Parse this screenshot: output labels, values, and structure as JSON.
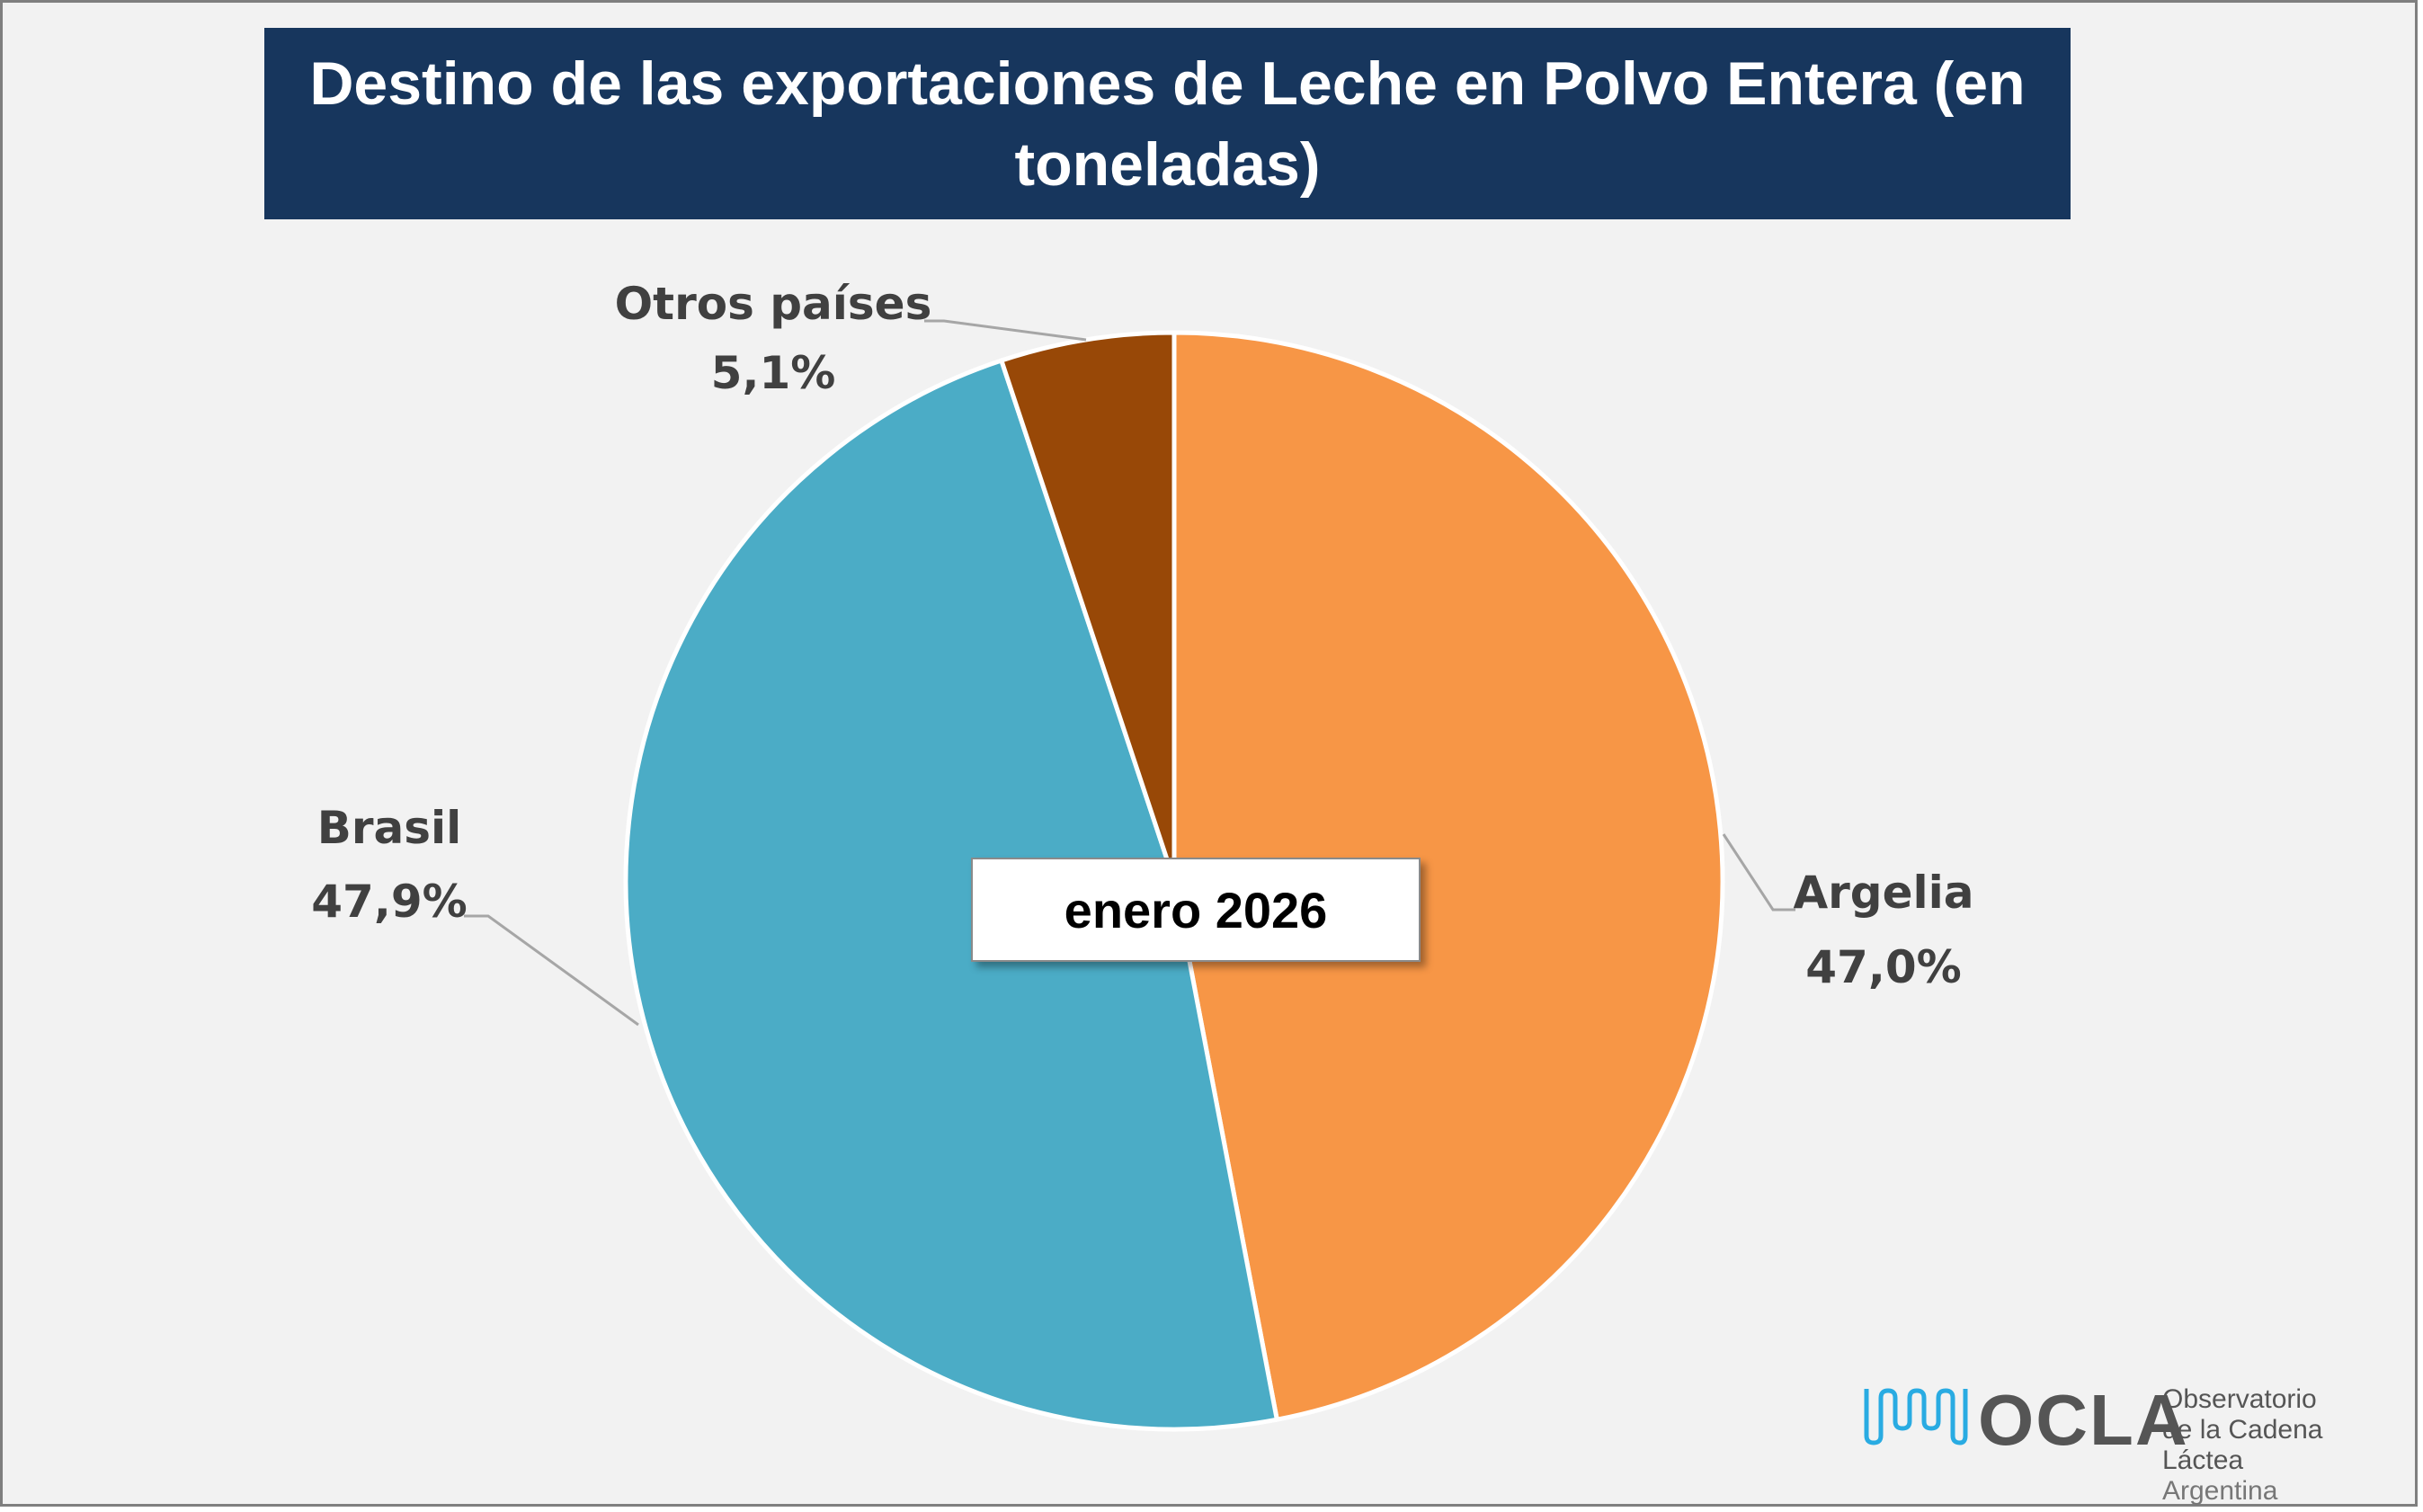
{
  "chart_data": {
    "type": "pie",
    "title": "Destino de las exportaciones de Leche en Polvo Entera (en toneladas)",
    "annotation": "enero 2026",
    "slices": [
      {
        "label": "Argelia",
        "value": 47.0,
        "display": "47,0%",
        "color": "#f79646"
      },
      {
        "label": "Brasil",
        "value": 47.9,
        "display": "47,9%",
        "color": "#4bacc6"
      },
      {
        "label": "Otros países",
        "value": 5.1,
        "display": "5,1%",
        "color": "#984807"
      }
    ],
    "start_angle": "top",
    "direction": "clockwise",
    "legend": "none"
  },
  "logo": {
    "name": "OCLA",
    "line1": "Observatorio",
    "line2": "de la Cadena Láctea",
    "line3": "Argentina"
  }
}
